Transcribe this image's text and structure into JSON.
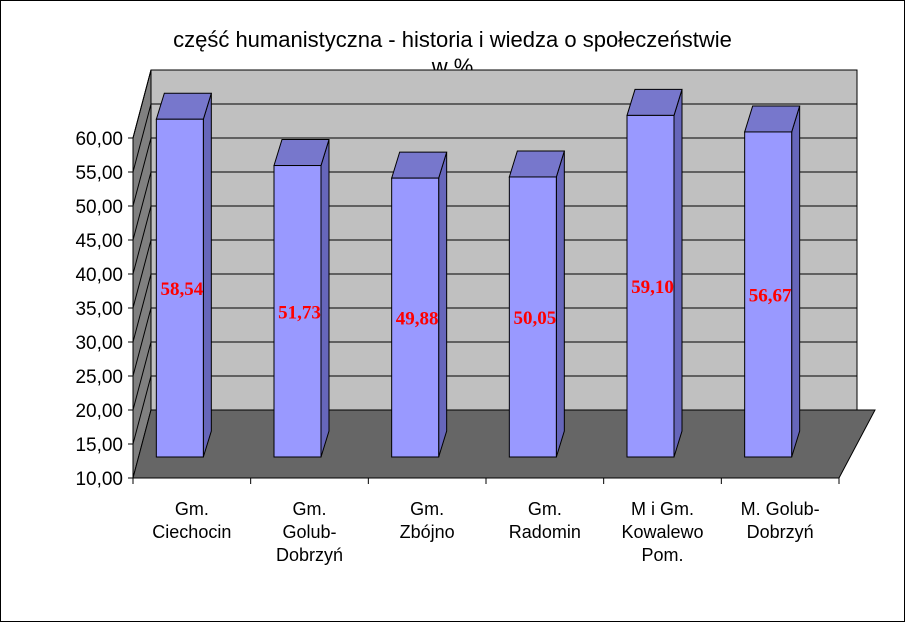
{
  "chart_data": {
    "type": "bar",
    "title": "część humanistyczna - historia i wiedza o społeczeństwie",
    "subtitle": "w %",
    "categories": [
      [
        "Gm.",
        "Ciechocin"
      ],
      [
        "Gm.",
        "Golub-",
        "Dobrzyń"
      ],
      [
        "Gm.",
        "Zbójno"
      ],
      [
        "Gm.",
        "Radomin"
      ],
      [
        "M i Gm.",
        "Kowalewo",
        "Pom."
      ],
      [
        "M. Golub-",
        "Dobrzyń"
      ]
    ],
    "values": [
      58.54,
      51.73,
      49.88,
      50.05,
      59.1,
      56.67
    ],
    "value_labels": [
      "58,54",
      "51,73",
      "49,88",
      "50,05",
      "59,10",
      "56,67"
    ],
    "yticks": [
      "10,00",
      "15,00",
      "20,00",
      "25,00",
      "30,00",
      "35,00",
      "40,00",
      "45,00",
      "50,00",
      "55,00",
      "60,00"
    ],
    "ylim": [
      10,
      60
    ],
    "grid": true,
    "colors": {
      "bar_front": "#9999ff",
      "bar_top": "#7777cc",
      "bar_side": "#6666bb",
      "wall": "#c0c0c0",
      "floor": "#666666",
      "label": "#ff0000"
    }
  }
}
